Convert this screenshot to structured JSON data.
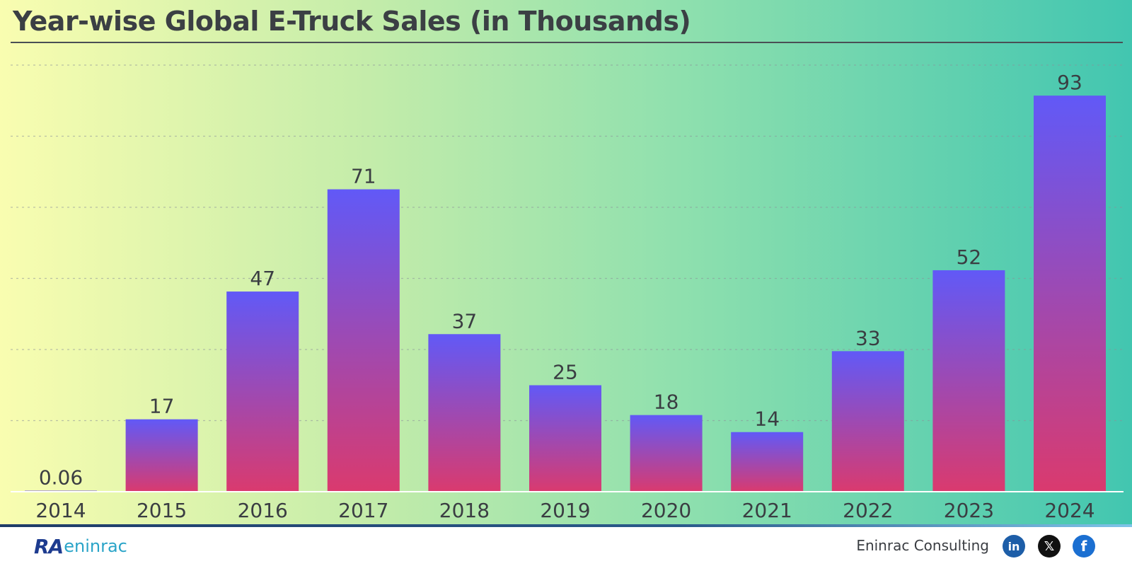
{
  "chart_data": {
    "type": "bar",
    "title": "Year-wise Global E-Truck Sales (in Thousands)",
    "categories": [
      "2014",
      "2015",
      "2016",
      "2017",
      "2018",
      "2019",
      "2020",
      "2021",
      "2022",
      "2023",
      "2024"
    ],
    "values": [
      0.06,
      17,
      47,
      71,
      37,
      25,
      18,
      14,
      33,
      52,
      93
    ],
    "data_labels": [
      "0.06",
      "17",
      "47",
      "71",
      "37",
      "25",
      "18",
      "14",
      "33",
      "52",
      "93"
    ],
    "ylim": [
      0,
      100
    ],
    "grid": true,
    "legend": "none",
    "bar_gradient": [
      "#6159f7",
      "#da3a6e"
    ]
  },
  "footer": {
    "brand": "Eninrac Consulting",
    "logo_ra": "RA",
    "logo_en": "eninrac",
    "social_icons": [
      "linkedin-icon",
      "x-icon",
      "facebook-icon"
    ]
  }
}
